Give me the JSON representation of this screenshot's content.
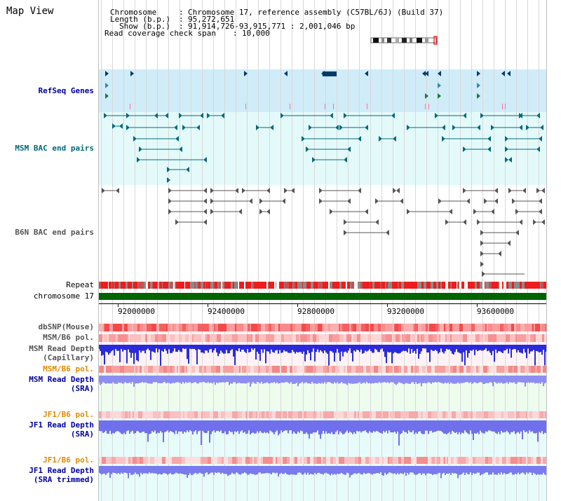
{
  "view": {
    "title": "Map View"
  },
  "info": {
    "chromosome_label": "Chromosome",
    "chromosome_value": "Chromosome 17, reference assembly (C57BL/6J) (Build 37)",
    "length_label": "Length (b.p.)",
    "length_value": "95,272,651",
    "show_label": "Show (b.p.)",
    "show_value": "91,914,726-93,915,771 : 2,001,046 bp",
    "span_label": "Read coverage check span",
    "span_value": "10,000"
  },
  "tracks": {
    "refseq": "RefSeq Genes",
    "msm_bac": "MSM BAC end pairs",
    "b6n_bac": "B6N BAC end pairs",
    "repeat": "Repeat",
    "chromosome": "chromosome 17",
    "dbsnp": "dbSNP(Mouse)",
    "msm_b6_pol_1": "MSM/B6 pol.",
    "msm_read_depth_cap_1": "MSM Read Depth",
    "msm_read_depth_cap_2": "(Capillary)",
    "msm_b6_pol_2": "MSM/B6 pol.",
    "msm_read_depth_sra_1": "MSM Read Depth",
    "msm_read_depth_sra_2": "(SRA)",
    "jf1_b6_pol_1": "JF1/B6 pol.",
    "jf1_read_depth_sra_1": "JF1 Read Depth",
    "jf1_read_depth_sra_2": "(SRA)",
    "jf1_b6_pol_2": "JF1/B6 pol.",
    "jf1_read_depth_trim_1": "JF1 Read Depth",
    "jf1_read_depth_trim_2": "(SRA trimmed)"
  },
  "axis": {
    "ticks": [
      "92000000",
      "92400000",
      "92800000",
      "93200000",
      "93600000"
    ]
  },
  "colors": {
    "refseq_bg": "#d0ecf8",
    "msm_bac_bg": "#e4fafa",
    "b6n_bg": "#ffffff",
    "chromosome_bar": "#006400",
    "repeat_red": "#ee1c1c",
    "depth_blue": "#2a2adc",
    "sra_blue": "#8e8ef2",
    "title_blue": "#0000a0",
    "bac_teal": "#006a7a",
    "pol_orange": "#e08a00"
  },
  "icons": {
    "ideogram": "chromosome-ideogram-icon"
  }
}
